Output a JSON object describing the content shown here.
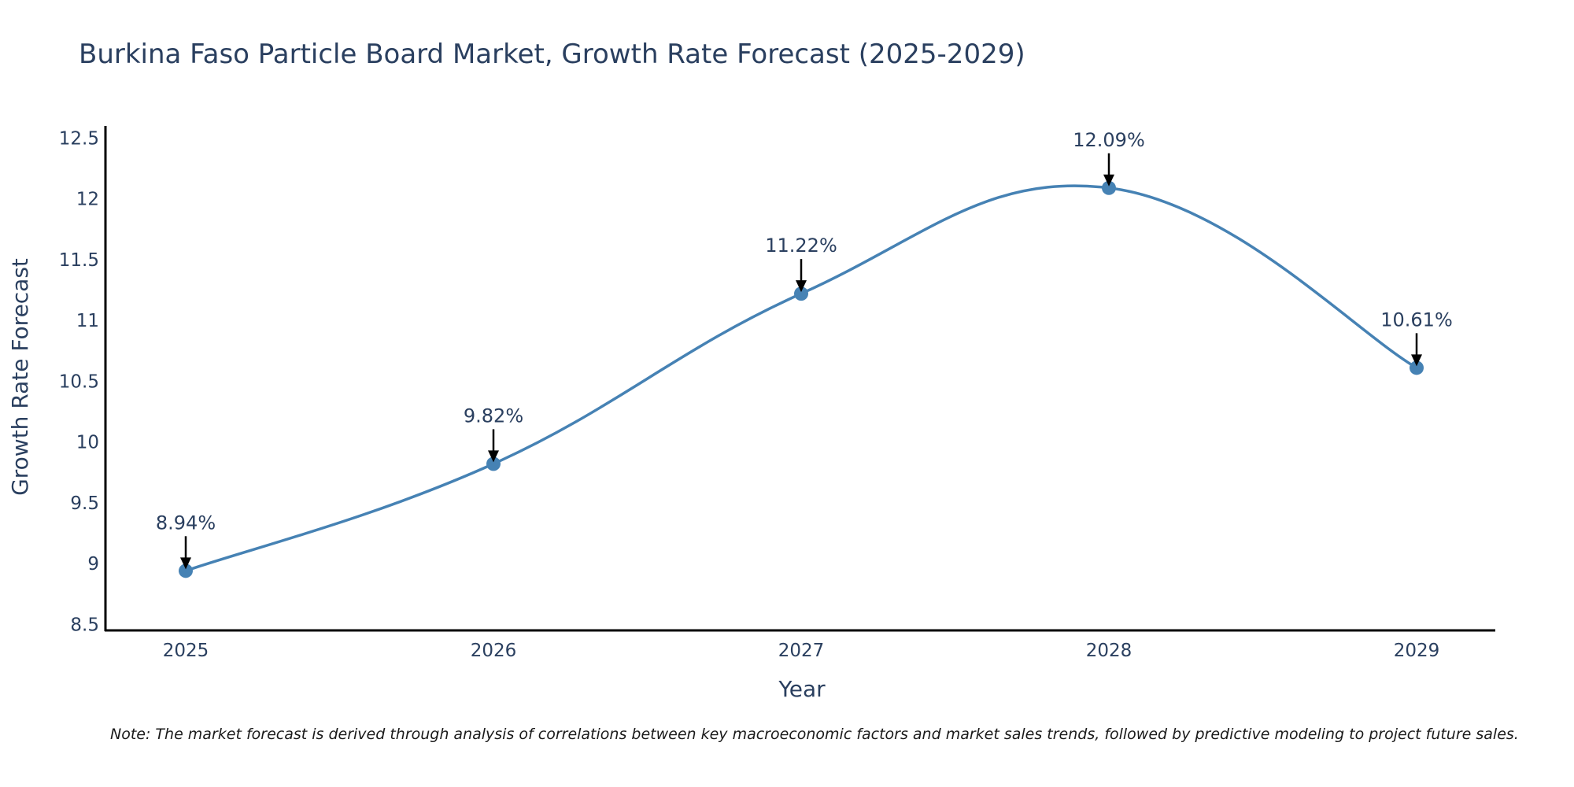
{
  "chart_data": {
    "type": "line",
    "title": "Burkina Faso Particle Board Market, Growth Rate Forecast (2025-2029)",
    "xlabel": "Year",
    "ylabel": "Growth Rate Forecast",
    "categories": [
      "2025",
      "2026",
      "2027",
      "2028",
      "2029"
    ],
    "values": [
      8.94,
      9.82,
      11.22,
      12.09,
      10.61
    ],
    "data_labels": [
      "8.94%",
      "9.82%",
      "11.22%",
      "12.09%",
      "10.61%"
    ],
    "ylim": [
      8.45,
      12.6
    ],
    "yticks": [
      "8.5",
      "9",
      "9.5",
      "10",
      "10.5",
      "11",
      "11.5",
      "12",
      "12.5"
    ],
    "ytick_values": [
      8.5,
      9,
      9.5,
      10,
      10.5,
      11,
      11.5,
      12,
      12.5
    ],
    "line_color": "#4682b4",
    "smooth": true,
    "grid": false
  },
  "note": "Note: The market forecast is derived through analysis of correlations between key macroeconomic factors and market sales trends, followed by predictive modeling to project future sales."
}
